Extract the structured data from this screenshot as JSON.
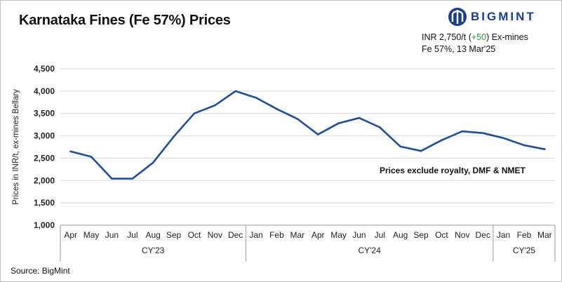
{
  "title": "Karnataka Fines (Fe 57%) Prices",
  "brand": {
    "name": "BIGMINT",
    "color": "#1b3f8f",
    "icon": "bigmint-logo-icon"
  },
  "info": {
    "price_prefix": "INR 2,750/t (",
    "change": "+50",
    "price_suffix": ") Ex-mines",
    "change_color": "#2e9b3e",
    "subline": "Fe 57%, 13 Mar'25"
  },
  "source": "Source: BigMint",
  "chart_data": {
    "type": "line",
    "title": "Karnataka Fines (Fe 57%) Prices",
    "ylabel": "Prices in INR/t, ex-mines Bellary",
    "xlabel": "",
    "ylim": [
      1000,
      4500
    ],
    "yticks": [
      1000,
      1500,
      2000,
      2500,
      3000,
      3500,
      4000,
      4500
    ],
    "ytick_labels": [
      "1,000",
      "1,500",
      "2,000",
      "2,500",
      "3,000",
      "3,500",
      "4,000",
      "4,500"
    ],
    "grid": true,
    "line_color": "#1f4e9c",
    "categories": [
      "Apr",
      "May",
      "Jun",
      "Jul",
      "Aug",
      "Sep",
      "Oct",
      "Nov",
      "Dec",
      "Jan",
      "Feb",
      "Mar",
      "Apr",
      "May",
      "Jun",
      "Jul",
      "Aug",
      "Sep",
      "Oct",
      "Nov",
      "Dec",
      "Jan",
      "Feb",
      "Mar"
    ],
    "groups": [
      {
        "label": "CY'23",
        "start": 0,
        "end": 8
      },
      {
        "label": "CY'24",
        "start": 9,
        "end": 20
      },
      {
        "label": "CY'25",
        "start": 21,
        "end": 23
      }
    ],
    "values": [
      2650,
      2530,
      2040,
      2040,
      2400,
      2980,
      3500,
      3680,
      4000,
      3850,
      3600,
      3380,
      3030,
      3280,
      3400,
      3190,
      2760,
      2660,
      2900,
      3100,
      3060,
      2950,
      2790,
      2700
    ],
    "annotation": "Prices exclude royalty, DMF & NMET"
  }
}
